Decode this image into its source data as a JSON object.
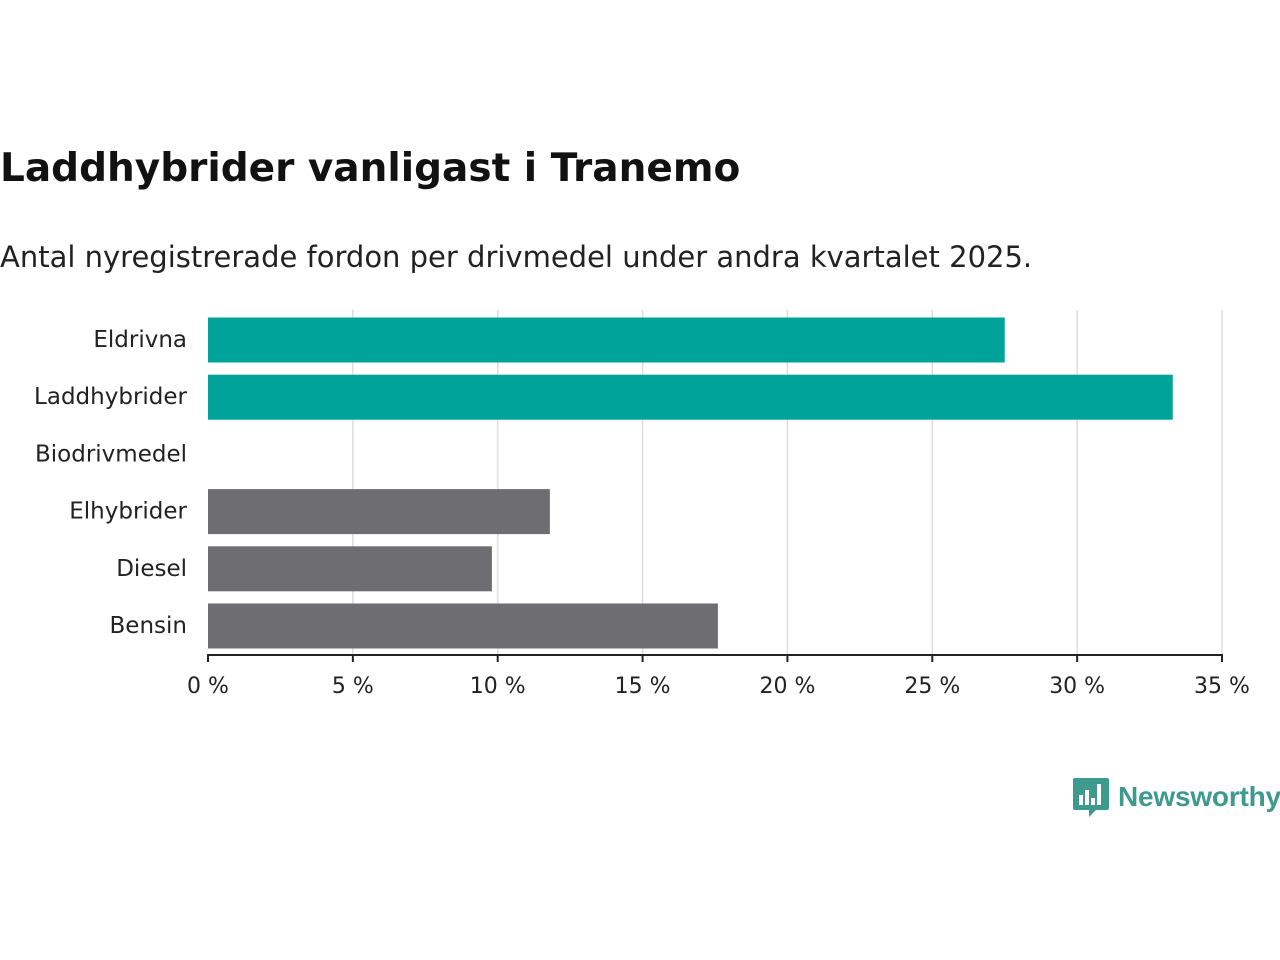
{
  "header": {
    "title": "Laddhybrider vanligast i Tranemo",
    "subtitle": "Antal nyregistrerade fordon per drivmedel under andra kvartalet 2025."
  },
  "brand": {
    "name": "Newsworthy",
    "icon": "bar-chart-speech-bubble-icon",
    "color": "#3e9a8f"
  },
  "colors": {
    "highlight": "#00a39a",
    "other": "#6e6d72",
    "grid": "#dddddd",
    "axis": "#222222"
  },
  "chart_data": {
    "type": "bar",
    "orientation": "horizontal",
    "title": "Laddhybrider vanligast i Tranemo",
    "subtitle": "Antal nyregistrerade fordon per drivmedel under andra kvartalet 2025.",
    "categories": [
      "Eldrivna",
      "Laddhybrider",
      "Biodrivmedel",
      "Elhybrider",
      "Diesel",
      "Bensin"
    ],
    "values": [
      27.5,
      33.3,
      0,
      11.8,
      9.8,
      17.6
    ],
    "highlight": [
      true,
      true,
      false,
      false,
      false,
      false
    ],
    "unit": "%",
    "xlim": [
      0,
      35
    ],
    "xticks": [
      0,
      5,
      10,
      15,
      20,
      25,
      30,
      35
    ],
    "xtick_labels": [
      "0 %",
      "5 %",
      "10 %",
      "15 %",
      "20 %",
      "25 %",
      "30 %",
      "35 %"
    ],
    "grid": true,
    "legend": "none"
  }
}
